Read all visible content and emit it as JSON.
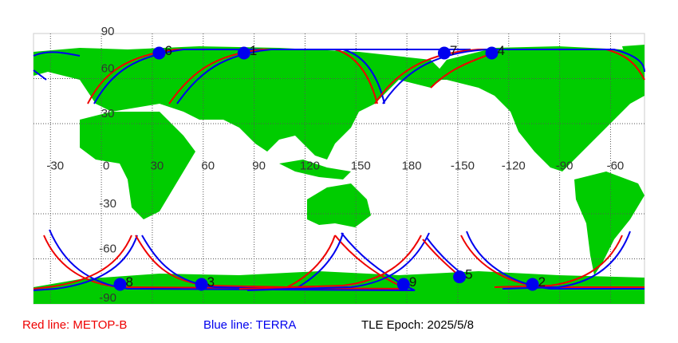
{
  "map": {
    "lon_labels": [
      -30,
      0,
      30,
      60,
      90,
      120,
      150,
      180,
      -150,
      -120,
      -90,
      -60
    ],
    "lat_labels": [
      90,
      60,
      30,
      -30,
      -60,
      -90
    ],
    "points": [
      {
        "label": "1",
        "lon": 84,
        "lat": 77
      },
      {
        "label": "2",
        "lon": -106,
        "lat": -77
      },
      {
        "label": "3",
        "lon": 59,
        "lat": -77
      },
      {
        "label": "4",
        "lon": -130,
        "lat": 77
      },
      {
        "label": "5",
        "lon": -149,
        "lat": -72
      },
      {
        "label": "6",
        "lon": 34,
        "lat": 77
      },
      {
        "label": "7",
        "lon": -158,
        "lat": 77
      },
      {
        "label": "8",
        "lon": 11,
        "lat": -77
      },
      {
        "label": "9",
        "lon": 178,
        "lat": -77
      }
    ]
  },
  "legend": {
    "red": "Red line: METOP-B",
    "blue": "Blue line: TERRA",
    "epoch": "TLE Epoch: 2025/5/8"
  }
}
